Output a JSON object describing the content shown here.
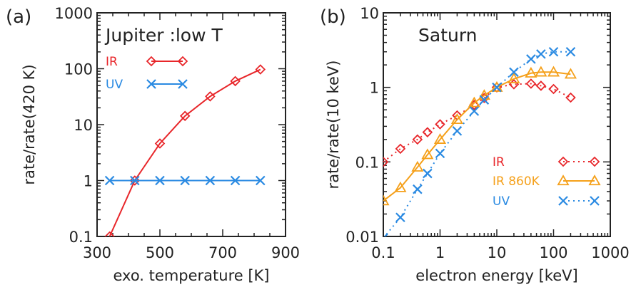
{
  "chart_data": [
    {
      "panel_label": "(a)",
      "type": "line",
      "title": "Jupiter :low T",
      "xlabel": "exo. temperature [K]",
      "ylabel": "rate/rate(420 K)",
      "xscale": "linear",
      "yscale": "log",
      "xlim": [
        300,
        900
      ],
      "ylim": [
        0.1,
        1000
      ],
      "xticks": [
        300,
        500,
        700,
        900
      ],
      "xtick_labels": [
        "300",
        "500",
        "700",
        "900"
      ],
      "yticks": [
        0.1,
        1,
        10,
        100,
        1000
      ],
      "ytick_labels": [
        "0.1",
        "1",
        "10",
        "100",
        "1000"
      ],
      "grid": false,
      "legend_position": "top-left",
      "series": [
        {
          "name": "IR",
          "color": "#e8262a",
          "marker": "diamond",
          "line": "solid",
          "x": [
            340,
            420,
            500,
            580,
            660,
            740,
            820
          ],
          "y": [
            0.1,
            1.0,
            4.6,
            14.3,
            32,
            60,
            97
          ]
        },
        {
          "name": "UV",
          "color": "#2a8ae2",
          "marker": "x",
          "line": "solid",
          "x": [
            340,
            420,
            500,
            580,
            660,
            740,
            820
          ],
          "y": [
            1.0,
            1.0,
            1.0,
            1.0,
            1.0,
            1.0,
            1.0
          ]
        }
      ]
    },
    {
      "panel_label": "(b)",
      "type": "line",
      "title": "Saturn",
      "xlabel": "electron energy [keV]",
      "ylabel": "rate/rate(10 keV)",
      "xscale": "log",
      "yscale": "log",
      "xlim": [
        0.1,
        1000
      ],
      "ylim": [
        0.01,
        10
      ],
      "xticks": [
        0.1,
        1,
        10,
        100,
        1000
      ],
      "xtick_labels": [
        "0.1",
        "1",
        "10",
        "100",
        "1000"
      ],
      "yticks": [
        0.01,
        0.1,
        1,
        10
      ],
      "ytick_labels": [
        "0.01",
        "0.1",
        "1",
        "10"
      ],
      "grid": false,
      "legend_position": "bottom-right",
      "series": [
        {
          "name": "IR",
          "color": "#e8262a",
          "marker": "diamond",
          "line": "dotted",
          "x": [
            0.1,
            0.2,
            0.4,
            0.6,
            1,
            2,
            4,
            6,
            10,
            20,
            40,
            60,
            100,
            200
          ],
          "y": [
            0.1,
            0.15,
            0.2,
            0.25,
            0.32,
            0.42,
            0.58,
            0.72,
            1.0,
            1.1,
            1.12,
            1.05,
            0.95,
            0.73
          ]
        },
        {
          "name": "IR 860K",
          "color": "#f5a01a",
          "marker": "triangle",
          "line": "solid",
          "x": [
            0.1,
            0.2,
            0.4,
            0.6,
            1,
            2,
            4,
            6,
            10,
            20,
            40,
            60,
            100,
            200
          ],
          "y": [
            0.03,
            0.045,
            0.085,
            0.125,
            0.2,
            0.37,
            0.62,
            0.78,
            1.0,
            1.3,
            1.55,
            1.6,
            1.6,
            1.5
          ]
        },
        {
          "name": "UV",
          "color": "#2a8ae2",
          "marker": "x",
          "line": "dotted",
          "x": [
            0.1,
            0.2,
            0.4,
            0.6,
            1,
            2,
            4,
            6,
            10,
            20,
            40,
            60,
            100,
            200
          ],
          "y": [
            0.0095,
            0.018,
            0.043,
            0.07,
            0.13,
            0.26,
            0.48,
            0.68,
            1.0,
            1.6,
            2.4,
            2.8,
            3.0,
            3.0
          ]
        }
      ]
    }
  ]
}
